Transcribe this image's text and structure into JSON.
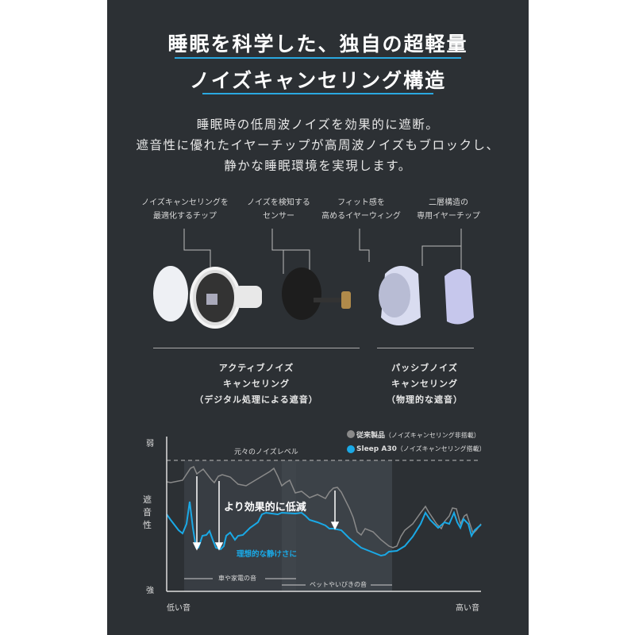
{
  "title": {
    "line1": "睡眠を科学した、独自の超軽量",
    "line2": "ノイズキャンセリング構造",
    "accent": "#2aa8e0"
  },
  "body": {
    "lines": [
      "睡眠時の低周波ノイズを効果的に遮断。",
      "遮音性に優れたイヤーチップが高周波ノイズもブロックし、",
      "静かな睡眠環境を実現します。"
    ]
  },
  "parts": [
    {
      "line1": "ノイズキャンセリングを",
      "line2": "最適化するチップ"
    },
    {
      "line1": "ノイズを検知する",
      "line2": "センサー"
    },
    {
      "line1": "フィット感を",
      "line2": "高めるイヤーウィング"
    },
    {
      "line1": "二層構造の",
      "line2": "専用イヤーチップ"
    }
  ],
  "groups": {
    "active": [
      "アクティブノイズ",
      "キャンセリング",
      "（デジタル処理による遮音）"
    ],
    "passive": [
      "パッシブノイズ",
      "キャンセリング",
      "（物理的な遮音）"
    ]
  },
  "chart": {
    "y_top": "弱",
    "y_label": [
      "遮",
      "音",
      "性"
    ],
    "y_bottom": "強",
    "x_left": "低い音",
    "x_right": "高い音",
    "baseline_label": "元々のノイズレベル",
    "legend": [
      {
        "name": "従来製品",
        "note": "（ノイズキャンセリング非搭載）",
        "color": "#8a8a8a"
      },
      {
        "name": "Sleep A30",
        "note": "（ノイズキャンセリング搭載）",
        "color": "#1aa9e6"
      }
    ],
    "annotation_reduce": "より効果的に低減",
    "annotation_ideal": "理想的な静けさに",
    "band_car": "車や家電の音",
    "band_pet": "ペットやいびきの音"
  }
}
